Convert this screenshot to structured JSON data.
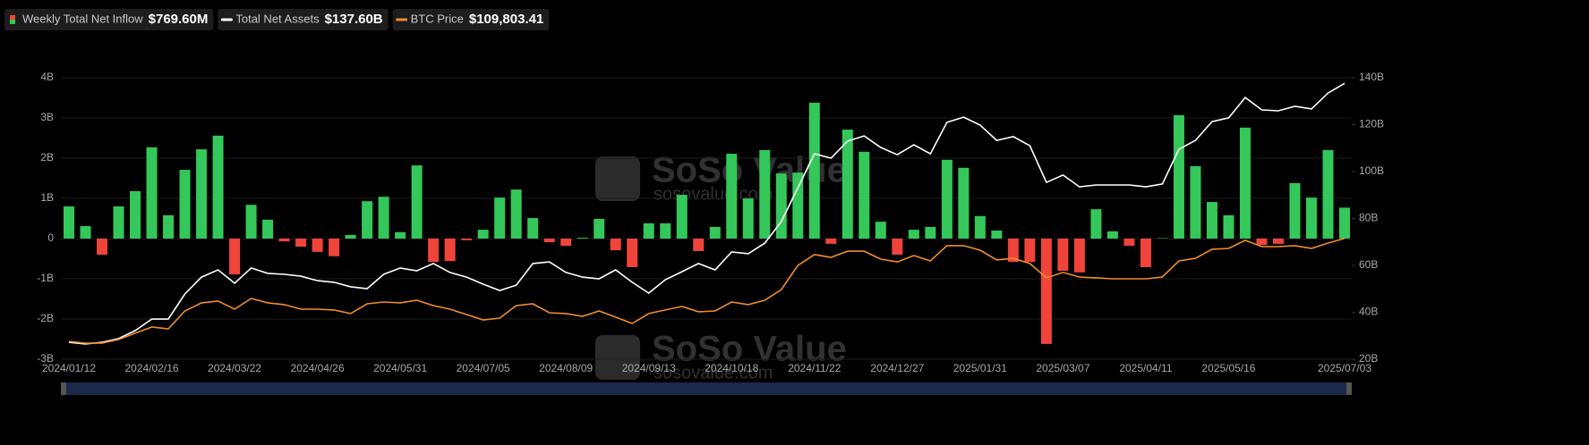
{
  "chart_data": {
    "type": "bar-line",
    "watermark": {
      "brand": "SoSo Value",
      "site": "sosovalue.com"
    },
    "categories": [
      "2024/01/12",
      null,
      null,
      null,
      null,
      "2024/02/16",
      null,
      null,
      null,
      null,
      "2024/03/22",
      null,
      null,
      null,
      null,
      "2024/04/26",
      null,
      null,
      null,
      null,
      "2024/05/31",
      null,
      null,
      null,
      null,
      "2024/07/05",
      null,
      null,
      null,
      null,
      "2024/08/09",
      null,
      null,
      null,
      null,
      "2024/09/13",
      null,
      null,
      null,
      null,
      "2024/10/18",
      null,
      null,
      null,
      null,
      "2024/11/22",
      null,
      null,
      null,
      null,
      "2024/12/27",
      null,
      null,
      null,
      null,
      "2025/01/31",
      null,
      null,
      null,
      null,
      "2025/03/07",
      null,
      null,
      null,
      null,
      "2025/04/11",
      null,
      null,
      null,
      null,
      "2025/05/16",
      null,
      null,
      null,
      null,
      null,
      null,
      "2025/07/03"
    ],
    "ylim": [
      -3,
      4
    ],
    "yticks": [
      {
        "value": -3,
        "label": "-3B"
      },
      {
        "value": -2,
        "label": "-2B"
      },
      {
        "value": -1,
        "label": "-1B"
      },
      {
        "value": 0,
        "label": "0"
      },
      {
        "value": 1,
        "label": "1B"
      },
      {
        "value": 2,
        "label": "2B"
      },
      {
        "value": 3,
        "label": "3B"
      },
      {
        "value": 4,
        "label": "4B"
      }
    ],
    "y2lim": [
      20,
      140
    ],
    "y2ticks": [
      {
        "value": 20,
        "label": "20B"
      },
      {
        "value": 40,
        "label": "40B"
      },
      {
        "value": 60,
        "label": "60B"
      },
      {
        "value": 80,
        "label": "80B"
      },
      {
        "value": 100,
        "label": "100B"
      },
      {
        "value": 120,
        "label": "120B"
      },
      {
        "value": 140,
        "label": "140B"
      }
    ],
    "y3lim": [
      35500,
      208800
    ],
    "grid": true,
    "series": [
      {
        "name": "Weekly Total Net Inflow",
        "latest": "$769.60M",
        "type": "bar",
        "color": "#34c759",
        "negative_color": "#f0443a",
        "values": [
          0.8,
          0.31,
          -0.4,
          0.8,
          1.18,
          2.27,
          0.58,
          1.71,
          2.22,
          2.56,
          -0.89,
          0.84,
          0.47,
          -0.07,
          -0.2,
          -0.33,
          -0.44,
          0.09,
          0.93,
          1.04,
          0.16,
          1.82,
          -0.58,
          -0.56,
          -0.04,
          0.22,
          1.02,
          1.22,
          0.51,
          -0.09,
          -0.18,
          0.02,
          0.49,
          -0.29,
          -0.71,
          0.38,
          0.38,
          1.09,
          -0.31,
          0.29,
          2.11,
          1.0,
          2.2,
          1.62,
          1.64,
          3.38,
          -0.13,
          2.71,
          2.16,
          0.42,
          -0.4,
          0.22,
          0.29,
          1.96,
          1.76,
          0.56,
          0.2,
          -0.58,
          -0.58,
          -2.62,
          -0.8,
          -0.84,
          0.73,
          0.18,
          -0.18,
          -0.71,
          0.01,
          3.07,
          1.8,
          0.91,
          0.58,
          2.76,
          -0.16,
          -0.13,
          1.38,
          1.02,
          2.2,
          0.7696
        ]
      },
      {
        "name": "Total Net Assets",
        "latest": "$137.60B",
        "type": "line",
        "axis": "y2",
        "color": "#ffffff",
        "values": [
          27.2,
          26.5,
          27.2,
          28.8,
          32.2,
          37.1,
          37.1,
          47.8,
          55,
          58.1,
          52.4,
          58.9,
          56.6,
          56.2,
          55.4,
          53.5,
          52.8,
          50.9,
          50.1,
          56.2,
          58.9,
          57.7,
          60.8,
          57,
          55,
          52,
          49.3,
          51.6,
          60.8,
          61.5,
          57,
          55,
          54.3,
          58.1,
          52.8,
          48.2,
          53.9,
          57.3,
          60.8,
          58.1,
          65.7,
          65,
          69.5,
          78.7,
          93.1,
          107.6,
          105.7,
          113,
          115.2,
          110.3,
          107.2,
          111.4,
          107.6,
          121,
          123.2,
          119.8,
          113.3,
          114.9,
          111,
          95.4,
          98.5,
          93.5,
          94.3,
          94.3,
          94.3,
          93.5,
          94.7,
          109.5,
          113.3,
          121.3,
          122.9,
          131.6,
          126.3,
          125.9,
          127.8,
          126.7,
          133.5,
          137.6
        ]
      },
      {
        "name": "BTC Price",
        "latest": "$109,803.41",
        "type": "line",
        "axis": "y3",
        "color": "#f08c2e",
        "values": [
          46500,
          45400,
          45400,
          47600,
          51500,
          55300,
          54200,
          65200,
          70200,
          71300,
          66300,
          72900,
          70200,
          69100,
          66300,
          66300,
          65800,
          63600,
          69600,
          70700,
          70200,
          71800,
          68500,
          66300,
          63000,
          59700,
          60800,
          68500,
          69600,
          64100,
          63600,
          61900,
          65200,
          61400,
          57500,
          63600,
          65800,
          68000,
          64700,
          65200,
          70700,
          69100,
          71800,
          78400,
          93300,
          99900,
          98200,
          102000,
          102000,
          97100,
          95400,
          99300,
          96000,
          105400,
          105400,
          102600,
          96600,
          97600,
          94400,
          85600,
          88900,
          86100,
          85600,
          85000,
          85000,
          85000,
          86100,
          96000,
          97600,
          103200,
          103700,
          108700,
          104800,
          104800,
          105400,
          103700,
          107000,
          109803.41
        ]
      }
    ]
  }
}
